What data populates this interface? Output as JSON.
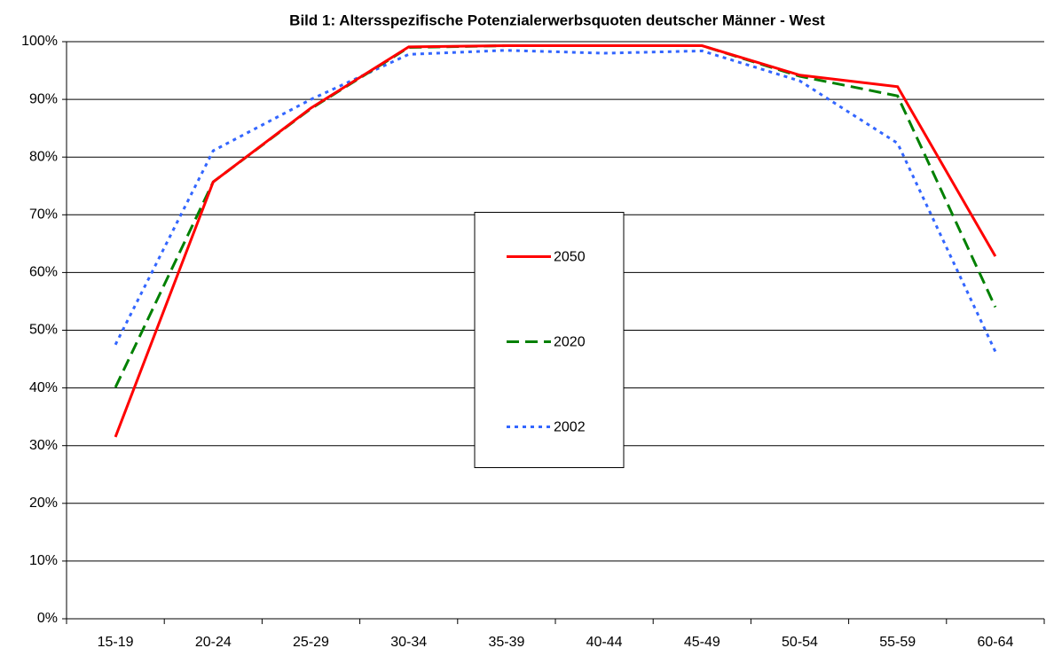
{
  "chart_data": {
    "type": "line",
    "title": "Bild 1: Altersspezifische Potenzialerwerbsquoten deutscher Männer - West",
    "categories": [
      "15-19",
      "20-24",
      "25-29",
      "30-34",
      "35-39",
      "40-44",
      "45-49",
      "50-54",
      "55-59",
      "60-64"
    ],
    "series": [
      {
        "name": "2050",
        "color": "#ff0000",
        "dash": "solid",
        "values": [
          31.5,
          75.7,
          88.5,
          99.1,
          99.3,
          99.3,
          99.3,
          94.2,
          92.2,
          62.8
        ]
      },
      {
        "name": "2020",
        "color": "#008000",
        "dash": "dashed",
        "values": [
          40.1,
          75.7,
          88.4,
          99.0,
          99.3,
          99.3,
          99.3,
          94.0,
          90.6,
          54.0
        ]
      },
      {
        "name": "2002",
        "color": "#3366ff",
        "dash": "dotted",
        "values": [
          47.5,
          81.1,
          90.0,
          97.8,
          98.5,
          98.0,
          98.4,
          93.2,
          82.4,
          46.3
        ]
      }
    ],
    "ylim": [
      0,
      100
    ],
    "yticks": [
      {
        "value": 0,
        "label": "0%"
      },
      {
        "value": 10,
        "label": "10%"
      },
      {
        "value": 20,
        "label": "20%"
      },
      {
        "value": 30,
        "label": "30%"
      },
      {
        "value": 40,
        "label": "40%"
      },
      {
        "value": 50,
        "label": "50%"
      },
      {
        "value": 60,
        "label": "60%"
      },
      {
        "value": 70,
        "label": "70%"
      },
      {
        "value": 80,
        "label": "80%"
      },
      {
        "value": 90,
        "label": "90%"
      },
      {
        "value": 100,
        "label": "100%"
      }
    ],
    "grid": true,
    "legend": "center"
  }
}
